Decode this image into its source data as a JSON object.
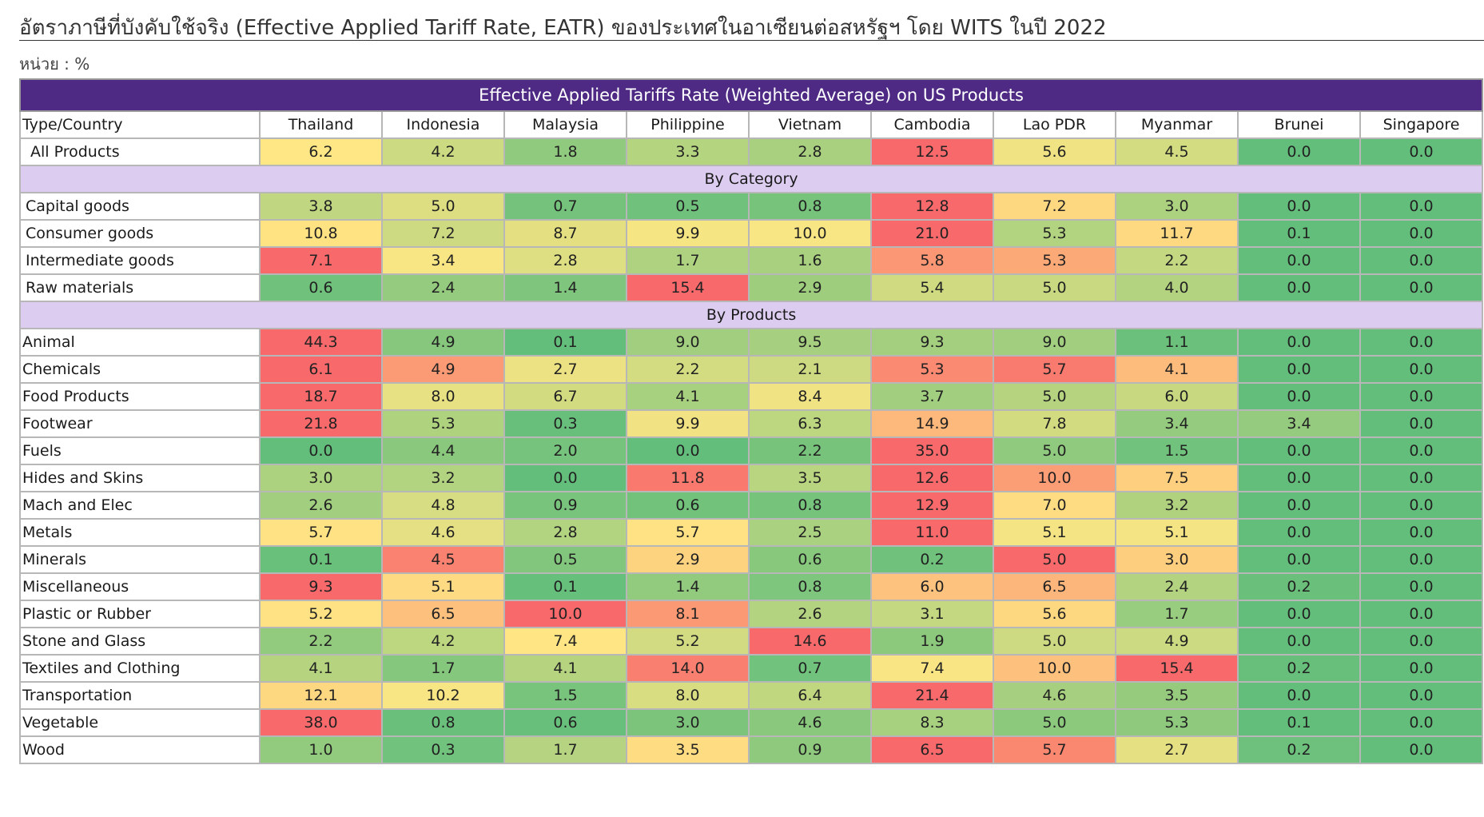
{
  "title": "อัตราภาษีที่บังคับใช้จริง (Effective Applied Tariff Rate, EATR) ของประเทศในอาเซียนต่อสหรัฐฯ โดย WITS ในปี 2022",
  "unit": "หน่วย : %",
  "colors": {
    "header_bg": "#4e2a84",
    "section_bg": "#dccdf0",
    "scale_low": "#63be7b",
    "scale_mid": "#ffe784",
    "scale_high": "#f8696b"
  },
  "chart_data": {
    "type": "heatmap",
    "title": "Effective Applied Tariffs Rate (Weighted Average) on US Products",
    "corner_label": "Type/Country",
    "columns": [
      "Thailand",
      "Indonesia",
      "Malaysia",
      "Philippine",
      "Vietnam",
      "Cambodia",
      "Lao PDR",
      "Myanmar",
      "Brunei",
      "Singapore"
    ],
    "sections": [
      {
        "heading": "",
        "rows": [
          {
            "label": "All Products",
            "values": [
              "6.2",
              "4.2",
              "1.8",
              "3.3",
              "2.8",
              "12.5",
              "5.6",
              "4.5",
              "0.0",
              "0.0"
            ]
          }
        ]
      },
      {
        "heading": "By Category",
        "rows": [
          {
            "label": "Capital goods",
            "values": [
              "3.8",
              "5.0",
              "0.7",
              "0.5",
              "0.8",
              "12.8",
              "7.2",
              "3.0",
              "0.0",
              "0.0"
            ]
          },
          {
            "label": "Consumer goods",
            "values": [
              "10.8",
              "7.2",
              "8.7",
              "9.9",
              "10.0",
              "21.0",
              "5.3",
              "11.7",
              "0.1",
              "0.0"
            ]
          },
          {
            "label": "Intermediate goods",
            "values": [
              "7.1",
              "3.4",
              "2.8",
              "1.7",
              "1.6",
              "5.8",
              "5.3",
              "2.2",
              "0.0",
              "0.0"
            ]
          },
          {
            "label": "Raw materials",
            "values": [
              "0.6",
              "2.4",
              "1.4",
              "15.4",
              "2.9",
              "5.4",
              "5.0",
              "4.0",
              "0.0",
              "0.0"
            ]
          }
        ]
      },
      {
        "heading": "By Products",
        "rows": [
          {
            "label": "Animal",
            "values": [
              "44.3",
              "4.9",
              "0.1",
              "9.0",
              "9.5",
              "9.3",
              "9.0",
              "1.1",
              "0.0",
              "0.0"
            ]
          },
          {
            "label": "Chemicals",
            "values": [
              "6.1",
              "4.9",
              "2.7",
              "2.2",
              "2.1",
              "5.3",
              "5.7",
              "4.1",
              "0.0",
              "0.0"
            ]
          },
          {
            "label": "Food Products",
            "values": [
              "18.7",
              "8.0",
              "6.7",
              "4.1",
              "8.4",
              "3.7",
              "5.0",
              "6.0",
              "0.0",
              "0.0"
            ]
          },
          {
            "label": "Footwear",
            "values": [
              "21.8",
              "5.3",
              "0.3",
              "9.9",
              "6.3",
              "14.9",
              "7.8",
              "3.4",
              "3.4",
              "0.0"
            ]
          },
          {
            "label": "Fuels",
            "values": [
              "0.0",
              "4.4",
              "2.0",
              "0.0",
              "2.2",
              "35.0",
              "5.0",
              "1.5",
              "0.0",
              "0.0"
            ]
          },
          {
            "label": "Hides and Skins",
            "values": [
              "3.0",
              "3.2",
              "0.0",
              "11.8",
              "3.5",
              "12.6",
              "10.0",
              "7.5",
              "0.0",
              "0.0"
            ]
          },
          {
            "label": "Mach and Elec",
            "values": [
              "2.6",
              "4.8",
              "0.9",
              "0.6",
              "0.8",
              "12.9",
              "7.0",
              "3.2",
              "0.0",
              "0.0"
            ]
          },
          {
            "label": "Metals",
            "values": [
              "5.7",
              "4.6",
              "2.8",
              "5.7",
              "2.5",
              "11.0",
              "5.1",
              "5.1",
              "0.0",
              "0.0"
            ]
          },
          {
            "label": "Minerals",
            "values": [
              "0.1",
              "4.5",
              "0.5",
              "2.9",
              "0.6",
              "0.2",
              "5.0",
              "3.0",
              "0.0",
              "0.0"
            ]
          },
          {
            "label": "Miscellaneous",
            "values": [
              "9.3",
              "5.1",
              "0.1",
              "1.4",
              "0.8",
              "6.0",
              "6.5",
              "2.4",
              "0.2",
              "0.0"
            ]
          },
          {
            "label": "Plastic or Rubber",
            "values": [
              "5.2",
              "6.5",
              "10.0",
              "8.1",
              "2.6",
              "3.1",
              "5.6",
              "1.7",
              "0.0",
              "0.0"
            ]
          },
          {
            "label": "Stone and Glass",
            "values": [
              "2.2",
              "4.2",
              "7.4",
              "5.2",
              "14.6",
              "1.9",
              "5.0",
              "4.9",
              "0.0",
              "0.0"
            ]
          },
          {
            "label": "Textiles and Clothing",
            "values": [
              "4.1",
              "1.7",
              "4.1",
              "14.0",
              "0.7",
              "7.4",
              "10.0",
              "15.4",
              "0.2",
              "0.0"
            ]
          },
          {
            "label": "Transportation",
            "values": [
              "12.1",
              "10.2",
              "1.5",
              "8.0",
              "6.4",
              "21.4",
              "4.6",
              "3.5",
              "0.0",
              "0.0"
            ]
          },
          {
            "label": "Vegetable",
            "values": [
              "38.0",
              "0.8",
              "0.6",
              "3.0",
              "4.6",
              "8.3",
              "5.0",
              "5.3",
              "0.1",
              "0.0"
            ]
          },
          {
            "label": "Wood",
            "values": [
              "1.0",
              "0.3",
              "1.7",
              "3.5",
              "0.9",
              "6.5",
              "5.7",
              "2.7",
              "0.2",
              "0.0"
            ]
          }
        ]
      }
    ]
  }
}
